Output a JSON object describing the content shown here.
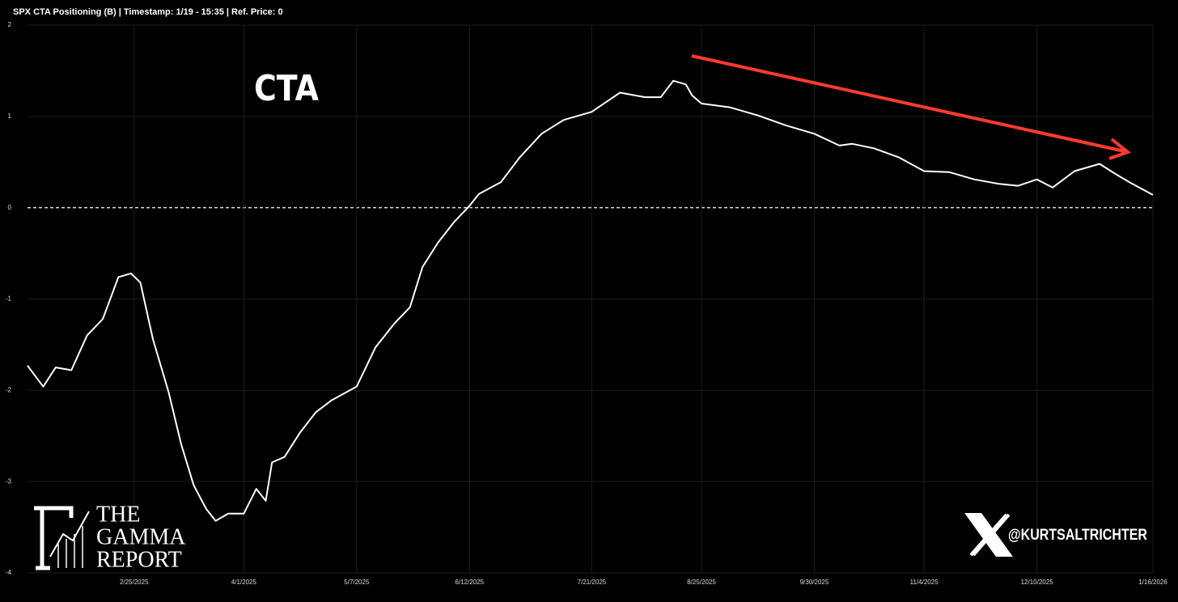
{
  "chart_data": {
    "type": "line",
    "title": "SPX CTA Positioning (B) | Timestamp: 1/19 - 15:35  | Ref. Price: 0",
    "annotation": "CTA",
    "logo": [
      "THE",
      "GAMMA",
      "REPORT"
    ],
    "handle": "@KURTSALTRICHTER",
    "x": [
      "1/22/2025",
      "1/27/2025",
      "1/31/2025",
      "2/5/2025",
      "2/10/2025",
      "2/15/2025",
      "2/20/2025",
      "2/24/2025",
      "2/27/2025",
      "3/3/2025",
      "3/8/2025",
      "3/12/2025",
      "3/16/2025",
      "3/20/2025",
      "3/23/2025",
      "3/27/2025",
      "4/1/2025",
      "4/5/2025",
      "4/8/2025",
      "4/10/2025",
      "4/14/2025",
      "4/19/2025",
      "4/24/2025",
      "4/29/2025",
      "5/7/2025",
      "5/13/2025",
      "5/19/2025",
      "5/24/2025",
      "5/28/2025",
      "6/2/2025",
      "6/7/2025",
      "6/12/2025",
      "6/15/2025",
      "6/22/2025",
      "6/28/2025",
      "7/5/2025",
      "7/12/2025",
      "7/21/2025",
      "7/30/2025",
      "8/7/2025",
      "8/12/2025",
      "8/16/2025",
      "8/20/2025",
      "8/22/2025",
      "8/25/2025",
      "9/3/2025",
      "9/12/2025",
      "9/21/2025",
      "9/30/2025",
      "10/8/2025",
      "10/12/2025",
      "10/19/2025",
      "10/27/2025",
      "11/4/2025",
      "11/12/2025",
      "11/20/2025",
      "11/28/2025",
      "12/4/2025",
      "12/10/2025",
      "12/15/2025",
      "12/22/2025",
      "12/30/2025",
      "1/4/2026",
      "1/9/2026",
      "1/16/2026"
    ],
    "series": [
      {
        "name": "CTA",
        "color": "#ffffff",
        "values": [
          -1.73,
          -1.96,
          -1.75,
          -1.78,
          -1.4,
          -1.22,
          -0.76,
          -0.72,
          -0.82,
          -1.44,
          -2.02,
          -2.59,
          -3.04,
          -3.3,
          -3.43,
          -3.35,
          -3.35,
          -3.08,
          -3.21,
          -2.79,
          -2.73,
          -2.46,
          -2.24,
          -2.11,
          -1.96,
          -1.53,
          -1.27,
          -1.09,
          -0.65,
          -0.38,
          -0.16,
          0.02,
          0.15,
          0.28,
          0.55,
          0.81,
          0.96,
          1.05,
          1.26,
          1.21,
          1.21,
          1.39,
          1.35,
          1.23,
          1.14,
          1.1,
          1.01,
          0.9,
          0.81,
          0.68,
          0.7,
          0.65,
          0.55,
          0.4,
          0.39,
          0.31,
          0.26,
          0.24,
          0.31,
          0.22,
          0.4,
          0.48,
          0.37,
          0.27,
          0.14
        ]
      }
    ],
    "xlim": [
      "1/22/2025",
      "1/16/2026"
    ],
    "xticks": [
      "2/25/2025",
      "4/1/2025",
      "5/7/2025",
      "6/12/2025",
      "7/21/2025",
      "8/25/2025",
      "9/30/2025",
      "11/4/2025",
      "12/10/2025",
      "1/16/2026"
    ],
    "ylim": [
      -4,
      2
    ],
    "yticks": [
      -4,
      -3,
      -2,
      -1,
      0,
      1,
      2
    ],
    "grid": true
  }
}
